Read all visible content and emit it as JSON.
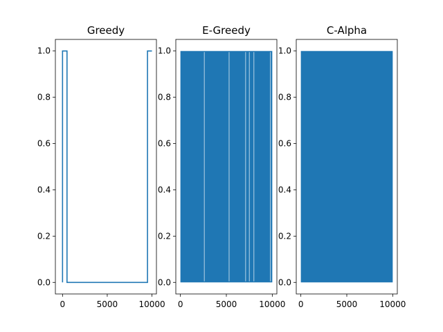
{
  "chart_data": [
    {
      "type": "line",
      "title": "Greedy",
      "xlim": [
        -800,
        10500
      ],
      "ylim": [
        -0.05,
        1.05
      ],
      "xticks": [
        0,
        5000,
        10000
      ],
      "yticks": [
        0.0,
        0.2,
        0.4,
        0.6,
        0.8,
        1.0
      ],
      "xtick_labels": [
        "0",
        "5000",
        "10000"
      ],
      "ytick_labels": [
        "0.0",
        "0.2",
        "0.4",
        "0.6",
        "0.8",
        "1.0"
      ],
      "series": [
        {
          "color": "#1f77b4",
          "style": "step",
          "x": [
            0,
            0,
            80,
            80,
            500,
            500,
            9500,
            9500,
            10000
          ],
          "y": [
            0,
            1,
            1,
            1,
            1,
            0,
            0,
            1,
            1
          ]
        }
      ]
    },
    {
      "type": "area",
      "title": "E-Greedy",
      "xlim": [
        -500,
        10500
      ],
      "ylim": [
        -0.05,
        1.05
      ],
      "xticks": [
        0,
        5000,
        10000
      ],
      "yticks": [
        0.0,
        0.2,
        0.4,
        0.6,
        0.8,
        1.0
      ],
      "xtick_labels": [
        "0",
        "5000",
        "10000"
      ],
      "ytick_labels": [
        "0.0",
        "0.2",
        "0.4",
        "0.6",
        "0.8",
        "1.0"
      ],
      "series": [
        {
          "color": "#1f77b4",
          "style": "dense_oscillation",
          "x_range": [
            0,
            10000
          ],
          "y_range": [
            0,
            1
          ],
          "gaps_x": [
            2600,
            5300,
            7100,
            7500,
            8000,
            9800
          ]
        }
      ]
    },
    {
      "type": "area",
      "title": "C-Alpha",
      "xlim": [
        -500,
        10500
      ],
      "ylim": [
        -0.05,
        1.05
      ],
      "xticks": [
        0,
        5000,
        10000
      ],
      "yticks": [
        0.0,
        0.2,
        0.4,
        0.6,
        0.8,
        1.0
      ],
      "xtick_labels": [
        "0",
        "5000",
        "10000"
      ],
      "ytick_labels": [
        "0.0",
        "0.2",
        "0.4",
        "0.6",
        "0.8",
        "1.0"
      ],
      "series": [
        {
          "color": "#1f77b4",
          "style": "dense_oscillation",
          "x_range": [
            0,
            10000
          ],
          "y_range": [
            0,
            1
          ],
          "gaps_x": []
        }
      ]
    }
  ]
}
